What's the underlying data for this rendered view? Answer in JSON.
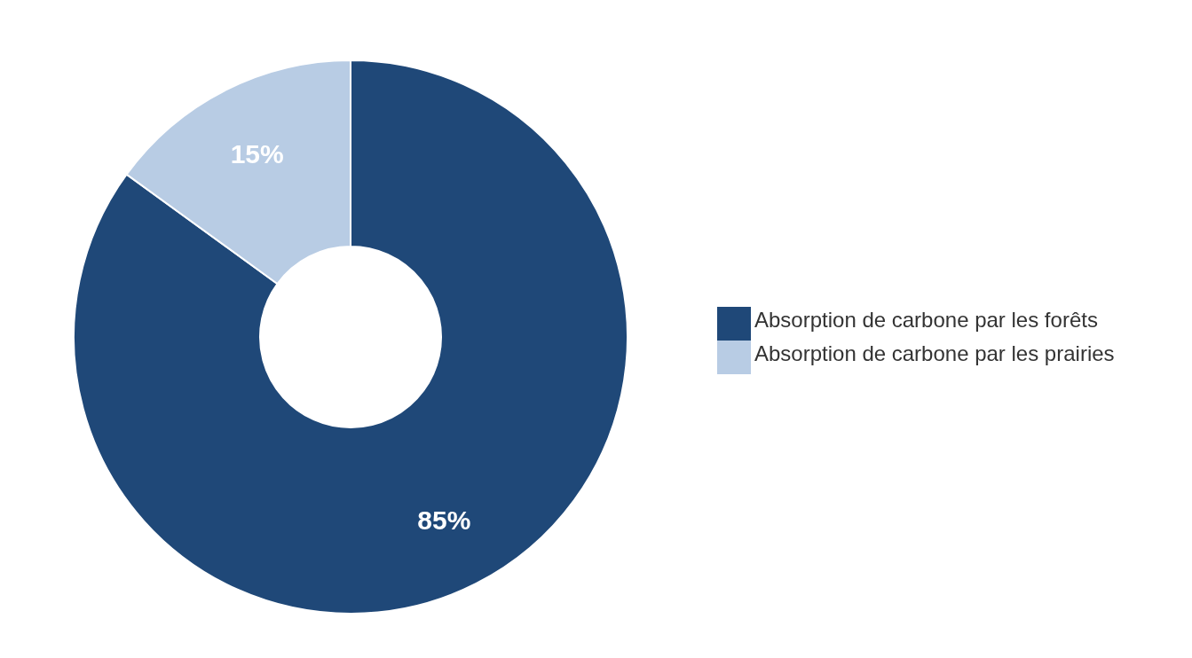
{
  "chart_data": {
    "type": "donut",
    "categories": [
      "Absorption de carbone par les forêts",
      "Absorption de carbone par les prairies"
    ],
    "values": [
      85,
      15
    ],
    "colors": [
      "#1f4878",
      "#b8cce4"
    ],
    "value_labels": [
      "85%",
      "15%"
    ],
    "legend": "right"
  }
}
